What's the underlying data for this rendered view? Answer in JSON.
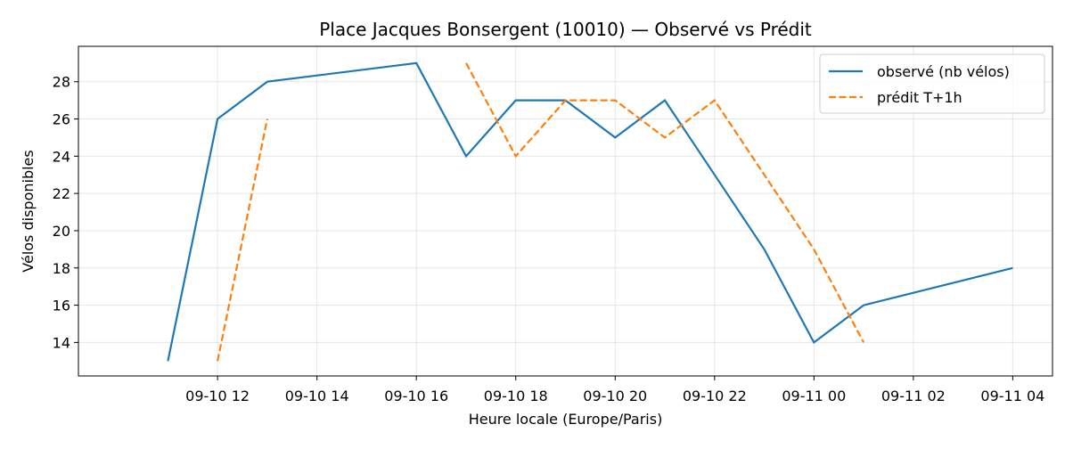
{
  "chart_data": {
    "type": "line",
    "title": "Place Jacques Bonsergent (10010) — Observé vs Prédit",
    "xlabel": "Heure locale (Europe/Paris)",
    "ylabel": "Vélos disponibles",
    "x_ticks": [
      "09-10 12",
      "09-10 14",
      "09-10 16",
      "09-10 18",
      "09-10 20",
      "09-10 22",
      "09-11 00",
      "09-11 02",
      "09-11 04"
    ],
    "x_tick_hours": [
      12,
      14,
      16,
      18,
      20,
      22,
      24,
      26,
      28
    ],
    "xlim_hours": [
      9.2,
      28.8
    ],
    "y_ticks": [
      14,
      16,
      18,
      20,
      22,
      24,
      26,
      28
    ],
    "ylim": [
      12.2,
      29.9
    ],
    "grid": true,
    "legend_position": "top-right",
    "series": [
      {
        "name": "observé (nb vélos)",
        "color": "#1f77b4",
        "style": "solid",
        "segments": [
          [
            [
              11,
              13
            ],
            [
              12,
              26
            ],
            [
              13,
              28
            ],
            [
              16,
              29
            ],
            [
              17,
              24
            ],
            [
              18,
              27
            ],
            [
              19,
              27
            ],
            [
              20,
              25
            ],
            [
              21,
              27
            ],
            [
              22,
              23
            ],
            [
              23,
              19
            ],
            [
              24,
              14
            ],
            [
              25,
              16
            ],
            [
              28,
              18
            ]
          ]
        ]
      },
      {
        "name": "prédit T+1h",
        "color": "#ff7f0e",
        "style": "dashed",
        "segments": [
          [
            [
              12,
              13
            ],
            [
              13,
              26
            ]
          ],
          [
            [
              17,
              29
            ],
            [
              18,
              24
            ],
            [
              19,
              27
            ],
            [
              20,
              27
            ],
            [
              21,
              25
            ],
            [
              22,
              27
            ],
            [
              23,
              23
            ],
            [
              24,
              19
            ],
            [
              25,
              14
            ]
          ]
        ]
      }
    ]
  }
}
